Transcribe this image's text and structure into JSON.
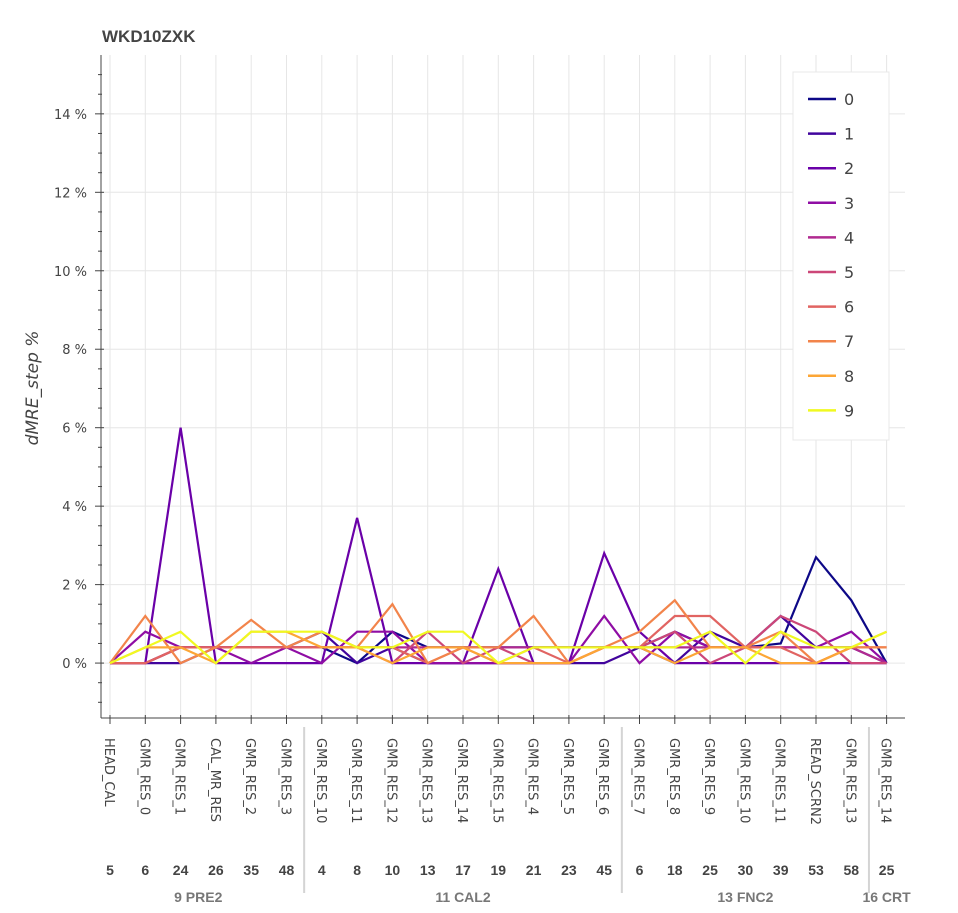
{
  "chart_data": {
    "type": "line",
    "title": "WKD10ZXK",
    "xlabel": "",
    "ylabel": "dMRE_step %",
    "ylim": [
      -1.4,
      15.5
    ],
    "yticks": [
      0,
      2,
      4,
      6,
      8,
      10,
      12,
      14
    ],
    "ytick_labels": [
      "0 %",
      "2 %",
      "4 %",
      "6 %",
      "8 %",
      "10 %",
      "12 %",
      "14 %"
    ],
    "grid": true,
    "legend_position": "top-right",
    "categories": [
      "HEAD_CAL",
      "GMR_RES_0",
      "GMR_RES_1",
      "CAL_MR_RES",
      "GMR_RES_2",
      "GMR_RES_3",
      "GMR_RES_10",
      "GMR_RES_11",
      "GMR_RES_12",
      "GMR_RES_13",
      "GMR_RES_14",
      "GMR_RES_15",
      "GMR_RES_4",
      "GMR_RES_5",
      "GMR_RES_6",
      "GMR_RES_7",
      "GMR_RES_8",
      "GMR_RES_9",
      "GMR_RES_10",
      "GMR_RES_11",
      "READ_SCRN2",
      "GMR_RES_13",
      "GMR_RES_14"
    ],
    "numbers": [
      "5",
      "6",
      "24",
      "26",
      "35",
      "48",
      "4",
      "8",
      "10",
      "13",
      "17",
      "19",
      "21",
      "23",
      "45",
      "6",
      "18",
      "25",
      "30",
      "39",
      "53",
      "58",
      "25"
    ],
    "groups": [
      {
        "label": "9 PRE2",
        "count": 6
      },
      {
        "label": "11 CAL2",
        "count": 9
      },
      {
        "label": "13 FNC2",
        "count": 7
      },
      {
        "label": "16 CRT",
        "count": 1
      }
    ],
    "series": [
      {
        "name": "0",
        "color": "#0d0887",
        "values": [
          0,
          0,
          0.4,
          0.4,
          0.4,
          0.4,
          0.4,
          0,
          0.8,
          0.4,
          0.4,
          0.4,
          0.4,
          0.4,
          0.4,
          0.4,
          0.8,
          0.4,
          0.4,
          0.5,
          2.7,
          1.6,
          0
        ]
      },
      {
        "name": "1",
        "color": "#41049d",
        "values": [
          0,
          0,
          0,
          0.4,
          0.4,
          0.4,
          0.8,
          0,
          0.4,
          0,
          0,
          0,
          0,
          0,
          0,
          0.4,
          0,
          0.8,
          0.4,
          1.2,
          0.4,
          0.4,
          0
        ]
      },
      {
        "name": "2",
        "color": "#6a00a8",
        "values": [
          0,
          0,
          6.0,
          0,
          0,
          0,
          0,
          3.7,
          0,
          0,
          0,
          2.4,
          0,
          0,
          2.8,
          0.8,
          0,
          0,
          0,
          0,
          0,
          0,
          0
        ]
      },
      {
        "name": "3",
        "color": "#8f0da4",
        "values": [
          0,
          0.8,
          0.4,
          0.4,
          0,
          0.4,
          0,
          0.8,
          0.8,
          0,
          0,
          0,
          0,
          0,
          1.2,
          0,
          0.8,
          0.4,
          0.4,
          0.4,
          0.4,
          0.8,
          0
        ]
      },
      {
        "name": "4",
        "color": "#b12a90",
        "values": [
          0,
          0,
          0.4,
          0.4,
          0.4,
          0.4,
          0.4,
          0.4,
          0.4,
          0.4,
          0.4,
          0.4,
          0.4,
          0.4,
          0.4,
          0.4,
          0.4,
          0.4,
          0.4,
          0.4,
          0.4,
          0.4,
          0
        ]
      },
      {
        "name": "5",
        "color": "#cc4778",
        "values": [
          0,
          0,
          0.4,
          0.4,
          0.4,
          0.4,
          0.4,
          0.4,
          0,
          0.8,
          0,
          0.4,
          0,
          0,
          0.4,
          0.4,
          0.8,
          0,
          0.4,
          1.2,
          0.8,
          0,
          0
        ]
      },
      {
        "name": "6",
        "color": "#e16462",
        "values": [
          0,
          0,
          0.4,
          0.4,
          0.4,
          0.4,
          0.4,
          0.4,
          0.4,
          0,
          0.4,
          0,
          0.4,
          0,
          0.4,
          0.4,
          1.2,
          1.2,
          0.4,
          0.4,
          0,
          0.4,
          0.4
        ]
      },
      {
        "name": "7",
        "color": "#f2844b",
        "values": [
          0,
          1.2,
          0,
          0.4,
          1.1,
          0.4,
          0.8,
          0.4,
          1.5,
          0,
          0.4,
          0.4,
          1.2,
          0,
          0.4,
          0.8,
          1.6,
          0.4,
          0.4,
          0.8,
          0,
          0.4,
          0.4
        ]
      },
      {
        "name": "8",
        "color": "#fca636",
        "values": [
          0,
          0.4,
          0.4,
          0,
          0.8,
          0.8,
          0.4,
          0.4,
          0,
          0.4,
          0.4,
          0,
          0,
          0,
          0.4,
          0.4,
          0,
          0.4,
          0.4,
          0,
          0,
          0.4,
          0.8
        ]
      },
      {
        "name": "9",
        "color": "#f0f921",
        "values": [
          0,
          0.4,
          0.8,
          0,
          0.8,
          0.8,
          0.8,
          0.4,
          0.4,
          0.8,
          0.8,
          0,
          0.4,
          0.4,
          0.4,
          0.4,
          0.4,
          0.8,
          0,
          0.8,
          0.4,
          0.4,
          0.8
        ]
      }
    ]
  }
}
